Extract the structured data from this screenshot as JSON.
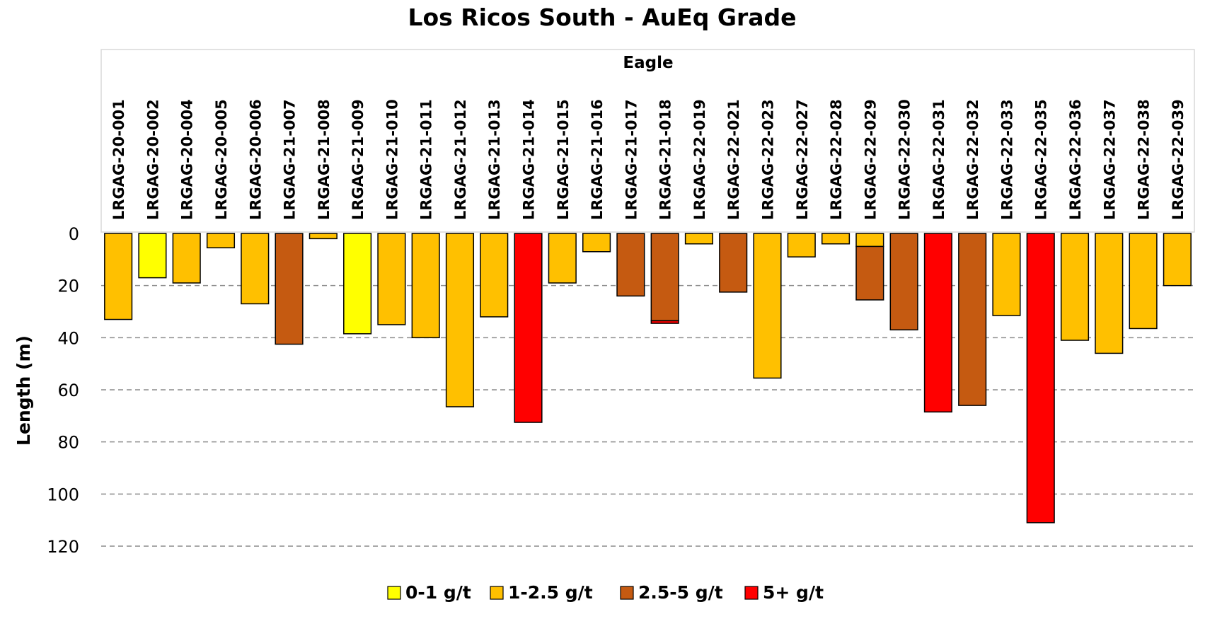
{
  "chart_data": {
    "type": "bar",
    "orientation": "downward (inverted y-axis)",
    "title": "Los Ricos South - AuEq Grade",
    "ylabel": "Length (m)",
    "xlabel": "",
    "group_label": "Eagle",
    "ylim": [
      0,
      120
    ],
    "yticks": [
      0,
      20,
      40,
      60,
      80,
      100,
      120
    ],
    "grid": "horizontal dashed",
    "legend_position": "bottom-center",
    "categories": [
      "LRGAG-20-001",
      "LRGAG-20-002",
      "LRGAG-20-004",
      "LRGAG-20-005",
      "LRGAG-20-006",
      "LRGAG-21-007",
      "LRGAG-21-008",
      "LRGAG-21-009",
      "LRGAG-21-010",
      "LRGAG-21-011",
      "LRGAG-21-012",
      "LRGAG-21-013",
      "LRGAG-21-014",
      "LRGAG-21-015",
      "LRGAG-21-016",
      "LRGAG-21-017",
      "LRGAG-21-018",
      "LRGAG-22-019",
      "LRGAG-22-021",
      "LRGAG-22-023",
      "LRGAG-22-027",
      "LRGAG-22-028",
      "LRGAG-22-029",
      "LRGAG-22-030",
      "LRGAG-22-031",
      "LRGAG-22-032",
      "LRGAG-22-033",
      "LRGAG-22-035",
      "LRGAG-22-036",
      "LRGAG-22-037",
      "LRGAG-22-038",
      "LRGAG-22-039"
    ],
    "series": [
      {
        "name": "0-1 g/t",
        "color": "#FFFF00",
        "values": [
          0,
          17,
          0,
          0,
          0,
          0,
          0,
          38.5,
          0,
          0,
          0,
          0,
          0,
          0,
          0,
          0,
          0,
          0,
          0,
          0,
          0,
          0,
          0,
          0,
          0,
          0,
          0,
          0,
          0,
          0,
          0,
          0
        ]
      },
      {
        "name": "1-2.5 g/t",
        "color": "#FFC000",
        "values": [
          33,
          0,
          19,
          5.5,
          27,
          0,
          2,
          0,
          35,
          40,
          66.5,
          32,
          0,
          19,
          7,
          0,
          0,
          4,
          0,
          55.5,
          9,
          4,
          5,
          0,
          0,
          0,
          31.5,
          0,
          41,
          46,
          36.5,
          20
        ]
      },
      {
        "name": "2.5-5 g/t",
        "color": "#C55A11",
        "values": [
          0,
          0,
          0,
          0,
          0,
          42.5,
          0,
          0,
          0,
          0,
          0,
          0,
          0,
          0,
          0,
          24,
          33.5,
          0,
          22.5,
          0,
          0,
          0,
          20.5,
          37,
          0,
          66,
          0,
          0,
          0,
          0,
          0,
          0
        ]
      },
      {
        "name": "5+ g/t",
        "color": "#FF0000",
        "values": [
          0,
          0,
          0,
          0,
          0,
          0,
          0,
          0,
          0,
          0,
          0,
          0,
          72.5,
          0,
          0,
          0,
          1,
          0,
          0,
          0,
          0,
          0,
          0,
          0,
          68.5,
          0,
          0,
          111,
          0,
          0,
          0,
          0
        ]
      }
    ]
  }
}
